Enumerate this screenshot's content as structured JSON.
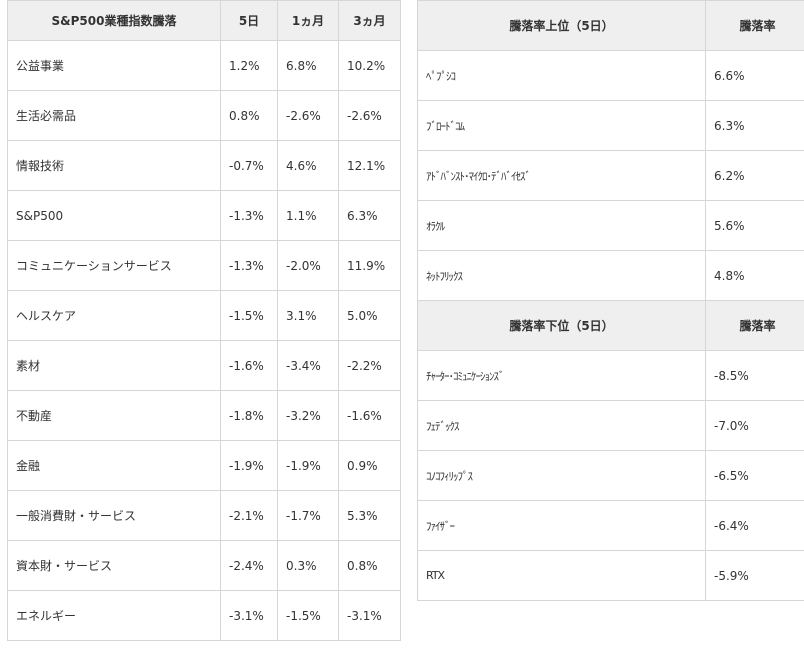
{
  "sector_table": {
    "headers": [
      "S&P500業種指数騰落",
      "5日",
      "1ヵ月",
      "3ヵ月"
    ],
    "rows": [
      {
        "name": "公益事業",
        "d5": "1.2%",
        "m1": "6.8%",
        "m3": "10.2%"
      },
      {
        "name": "生活必需品",
        "d5": "0.8%",
        "m1": "-2.6%",
        "m3": "-2.6%"
      },
      {
        "name": "情報技術",
        "d5": "-0.7%",
        "m1": "4.6%",
        "m3": "12.1%"
      },
      {
        "name": "S&P500",
        "d5": "-1.3%",
        "m1": "1.1%",
        "m3": "6.3%"
      },
      {
        "name": "コミュニケーションサービス",
        "d5": "-1.3%",
        "m1": "-2.0%",
        "m3": "11.9%"
      },
      {
        "name": "ヘルスケア",
        "d5": "-1.5%",
        "m1": "3.1%",
        "m3": "5.0%"
      },
      {
        "name": "素材",
        "d5": "-1.6%",
        "m1": "-3.4%",
        "m3": "-2.2%"
      },
      {
        "name": "不動産",
        "d5": "-1.8%",
        "m1": "-3.2%",
        "m3": "-1.6%"
      },
      {
        "name": "金融",
        "d5": "-1.9%",
        "m1": "-1.9%",
        "m3": "0.9%"
      },
      {
        "name": "一般消費財・サービス",
        "d5": "-2.1%",
        "m1": "-1.7%",
        "m3": "5.3%"
      },
      {
        "name": "資本財・サービス",
        "d5": "-2.4%",
        "m1": "0.3%",
        "m3": "0.8%"
      },
      {
        "name": "エネルギー",
        "d5": "-3.1%",
        "m1": "-1.5%",
        "m3": "-3.1%"
      }
    ]
  },
  "gainers": {
    "header_name": "騰落率上位（5日）",
    "header_rate": "騰落率",
    "rows": [
      {
        "name": "ﾍﾟﾌﾟｼｺ",
        "rate": "6.6%"
      },
      {
        "name": "ﾌﾞﾛｰﾄﾞｺﾑ",
        "rate": "6.3%"
      },
      {
        "name": "ｱﾄﾞﾊﾞﾝｽﾄ･ﾏｲｸﾛ･ﾃﾞﾊﾞｲｾｽﾞ",
        "rate": "6.2%"
      },
      {
        "name": "ｵﾗｸﾙ",
        "rate": "5.6%"
      },
      {
        "name": "ﾈｯﾄﾌﾘｯｸｽ",
        "rate": "4.8%"
      }
    ]
  },
  "losers": {
    "header_name": "騰落率下位（5日）",
    "header_rate": "騰落率",
    "rows": [
      {
        "name": "ﾁｬｰﾀｰ･ｺﾐｭﾆｹｰｼｮﾝｽﾞ",
        "rate": "-8.5%"
      },
      {
        "name": "ﾌｪﾃﾞｯｸｽ",
        "rate": "-7.0%"
      },
      {
        "name": "ｺﾉｺﾌｨﾘｯﾌﾟｽ",
        "rate": "-6.5%"
      },
      {
        "name": "ﾌｧｲｻﾞｰ",
        "rate": "-6.4%"
      },
      {
        "name": "RTX",
        "rate": "-5.9%"
      }
    ]
  }
}
